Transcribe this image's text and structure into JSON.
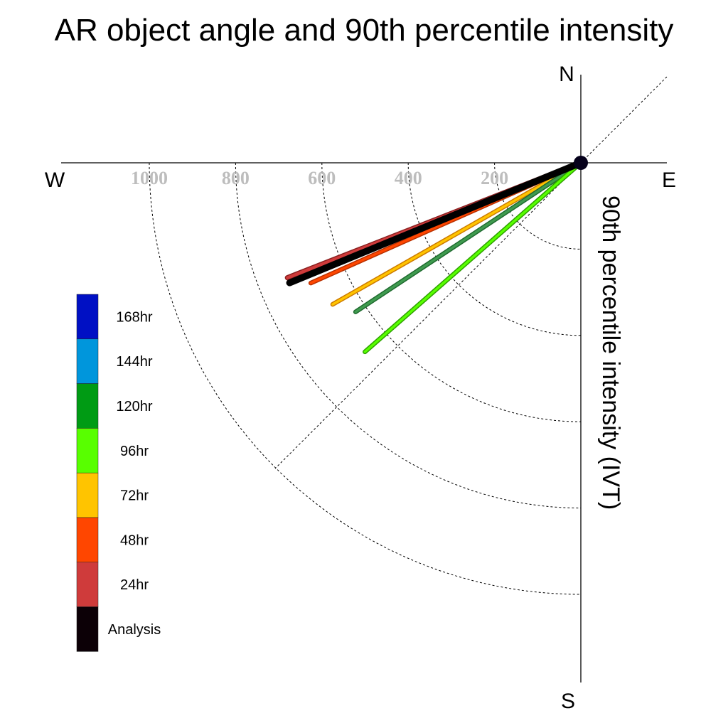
{
  "chart_data": {
    "type": "polar-quadrant",
    "title": "AR object angle and 90th percentile intensity",
    "ylabel": "90th percentile intensity (IVT)",
    "compass": {
      "north": "N",
      "south": "S",
      "east": "E",
      "west": "W"
    },
    "radial_ticks": [
      "200",
      "400",
      "600",
      "800",
      "1000"
    ],
    "radial_range": [
      0,
      1000
    ],
    "angle_unit": "degrees below west",
    "grid": true,
    "legend": {
      "placement": "left",
      "entries": [
        {
          "label": "168hr",
          "color": "#0010c4"
        },
        {
          "label": "144hr",
          "color": "#0096dc"
        },
        {
          "label": "120hr",
          "color": "#009b14"
        },
        {
          "label": "96hr",
          "color": "#58ff00"
        },
        {
          "label": "72hr",
          "color": "#ffc400"
        },
        {
          "label": "48hr",
          "color": "#ff4600"
        },
        {
          "label": "24hr",
          "color": "#cf3b3b"
        },
        {
          "label": "Analysis",
          "color": "#0c0006"
        }
      ]
    },
    "series": [
      {
        "label": "24hr",
        "angle": 21.4,
        "intensity": 730,
        "color": "#cf3b3b",
        "outline": "#8a2020",
        "width": 6
      },
      {
        "label": "48hr",
        "angle": 24.0,
        "intensity": 685,
        "color": "#ff4600",
        "outline": "#b83000",
        "width": 5
      },
      {
        "label": "72hr",
        "angle": 29.7,
        "intensity": 662,
        "color": "#ffc400",
        "outline": "#cc7a00",
        "width": 5
      },
      {
        "label": "120hr",
        "angle": 33.5,
        "intensity": 626,
        "color": "#3f9b4f",
        "outline": "#1f6a2f",
        "width": 5
      },
      {
        "label": "96hr",
        "angle": 41.2,
        "intensity": 665,
        "color": "#58ff00",
        "outline": "#2ea000",
        "width": 5
      },
      {
        "label": "Analysis",
        "angle": 22.4,
        "intensity": 730,
        "color": "#000000",
        "outline": "#000000",
        "width": 8
      }
    ]
  }
}
